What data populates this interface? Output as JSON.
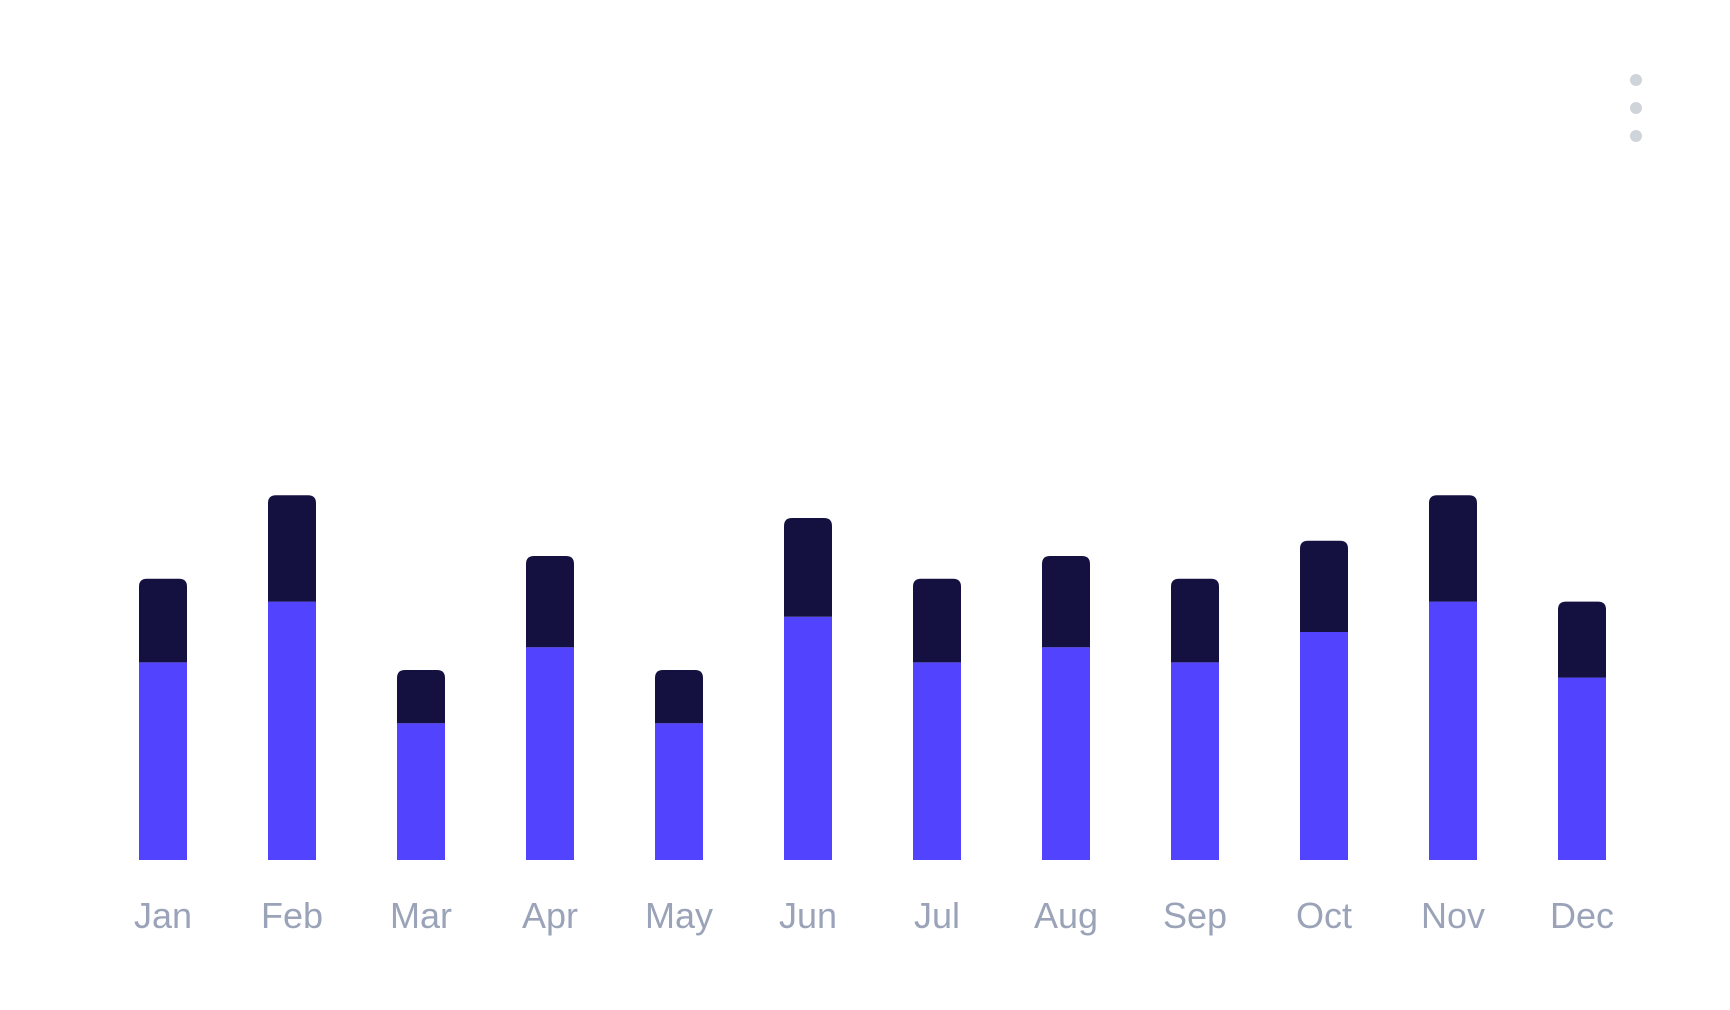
{
  "menu": {
    "icon": "more-vertical-icon"
  },
  "colors": {
    "series_bottom": "#5243fe",
    "series_top": "#141140",
    "tick_label": "#9aa3b8",
    "menu_dot": "#cfd3da"
  },
  "chart_data": {
    "type": "bar",
    "stacked": true,
    "categories": [
      "Jan",
      "Feb",
      "Mar",
      "Apr",
      "May",
      "Jun",
      "Jul",
      "Aug",
      "Sep",
      "Oct",
      "Nov",
      "Dec"
    ],
    "series": [
      {
        "values": [
          26,
          34,
          18,
          28,
          18,
          32,
          26,
          28,
          26,
          30,
          34,
          24
        ]
      },
      {
        "values": [
          11,
          14,
          7,
          12,
          7,
          13,
          11,
          12,
          11,
          12,
          14,
          10
        ]
      }
    ],
    "title": "",
    "xlabel": "",
    "ylabel": "",
    "ylim": [
      0,
      100
    ],
    "grid": false,
    "legend": "none"
  }
}
